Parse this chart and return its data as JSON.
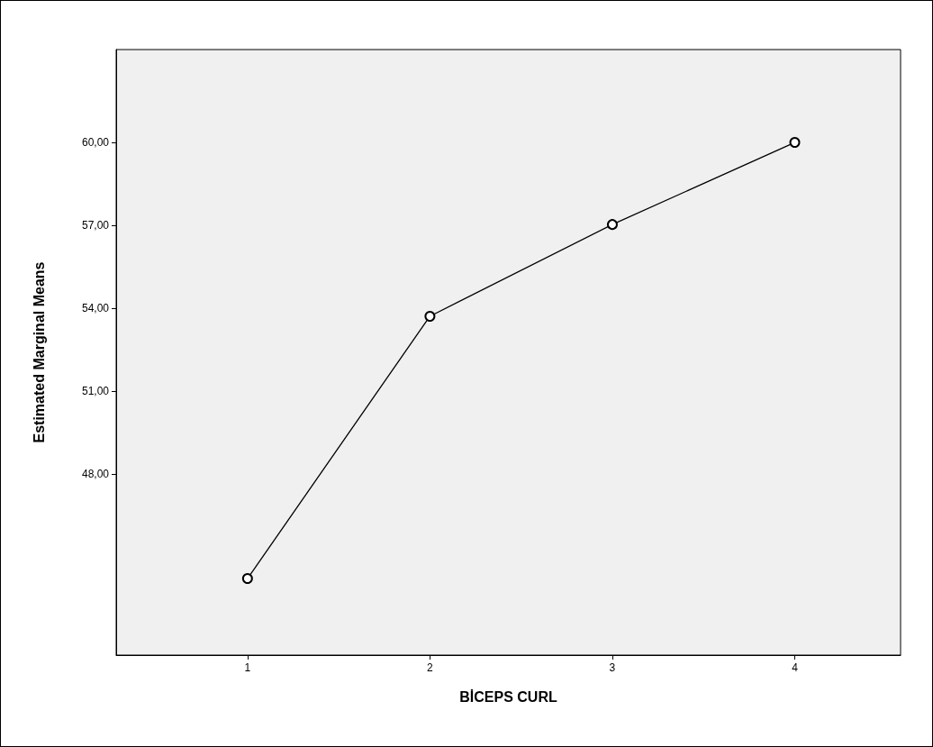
{
  "chart_data": {
    "type": "line",
    "xlabel": "BİCEPS CURL",
    "ylabel": "Estimated Marginal Means",
    "x": [
      1,
      2,
      3,
      4
    ],
    "series": [
      {
        "color": "#000000",
        "values": [
          44.22,
          53.71,
          57.03,
          60.0
        ]
      }
    ],
    "xlim": [
      0.28,
      4.58
    ],
    "xticks": [
      1,
      2,
      3,
      4
    ],
    "ylim": [
      41.45,
      63.36
    ],
    "yticks": [
      {
        "value": 48,
        "label": "48,00"
      },
      {
        "value": 51,
        "label": "51,00"
      },
      {
        "value": 54,
        "label": "54,00"
      },
      {
        "value": 57,
        "label": "57,00"
      },
      {
        "value": 60,
        "label": "60,00"
      }
    ],
    "grid": false,
    "marker": "circle",
    "line_style": "solid"
  }
}
